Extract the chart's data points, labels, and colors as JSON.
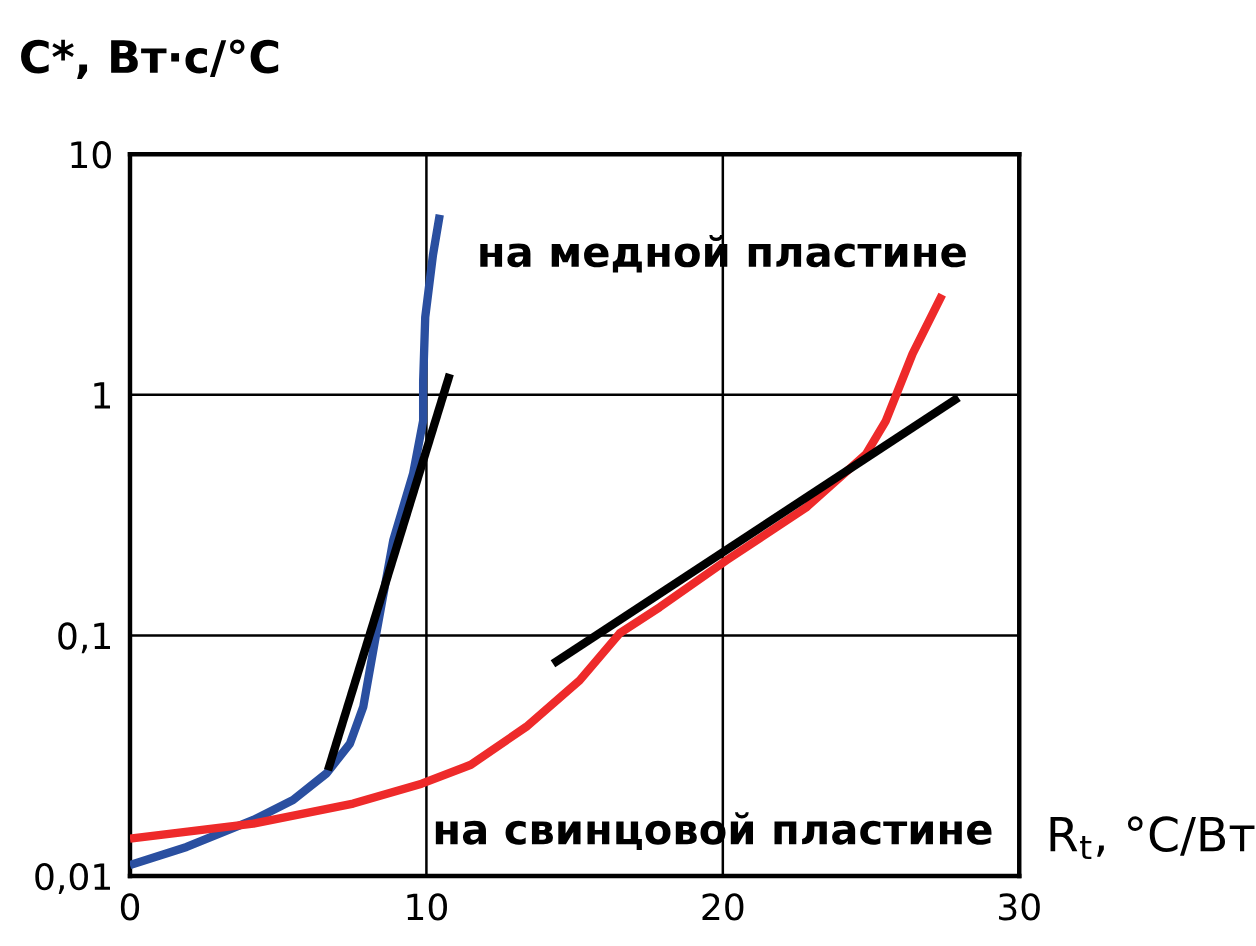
{
  "chart_data": {
    "type": "line",
    "ylabel": "C*, Вт·с/°C",
    "xlabel": "R$_{t}$, °C/Вт",
    "annotations": [
      "на медной пластине",
      "на свинцовой пластине"
    ],
    "log": "y",
    "grid": true,
    "marker": "none",
    "line_style": "solid",
    "xlim": [
      0,
      30
    ],
    "xticks": [
      0,
      10,
      20,
      30
    ],
    "ylim": [
      0.01,
      10
    ],
    "yticks": [
      {
        "value": 0.01,
        "label": "0,01"
      },
      {
        "value": 0.1,
        "label": "0,1"
      },
      1,
      10
    ],
    "series": [
      {
        "color": "#2a4fa0",
        "x": [
          0,
          1.91,
          4.16,
          5.5,
          6.63,
          7.42,
          7.87,
          8.31,
          8.88,
          9.55,
          9.89,
          9.89,
          9.96,
          10.22,
          10.45
        ],
        "values": [
          0.0111,
          0.0132,
          0.0171,
          0.0207,
          0.0267,
          0.0355,
          0.0505,
          0.102,
          0.248,
          0.47,
          0.78,
          1.14,
          2.1,
          3.8,
          5.6
        ]
      },
      {
        "color": "#ee2a2a",
        "x": [
          0,
          4.16,
          7.53,
          9.84,
          11.5,
          13.37,
          15.17,
          16.52,
          17.87,
          20.12,
          22.81,
          24.83,
          25.5,
          26.4,
          27.4
        ],
        "values": [
          0.0143,
          0.0165,
          0.02,
          0.0242,
          0.029,
          0.0417,
          0.065,
          0.102,
          0.131,
          0.205,
          0.34,
          0.567,
          0.78,
          1.48,
          2.61
        ]
      },
      {
        "color": "#000000",
        "x": [
          6.68,
          10.79
        ],
        "values": [
          0.0275,
          1.22
        ]
      },
      {
        "color": "#000000",
        "x": [
          14.27,
          27.95
        ],
        "values": [
          0.0762,
          0.975
        ]
      }
    ]
  }
}
